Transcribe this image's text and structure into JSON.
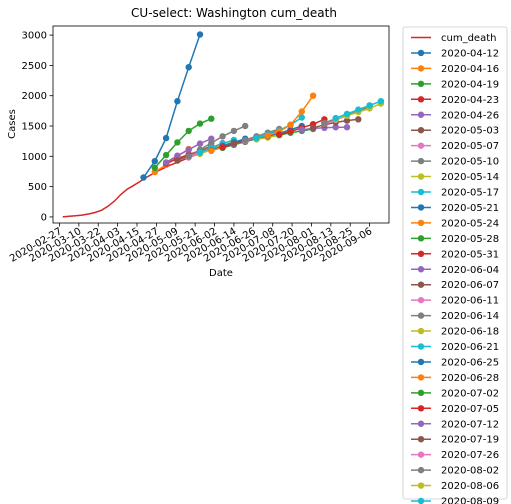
{
  "chart_data": {
    "type": "line",
    "title": "CU-select: Washington cum_death",
    "xlabel": "Date",
    "ylabel": "Cases",
    "x_ticks": [
      "2020-02-27",
      "2020-03-10",
      "2020-03-22",
      "2020-04-03",
      "2020-04-15",
      "2020-04-27",
      "2020-05-09",
      "2020-05-21",
      "2020-06-02",
      "2020-06-14",
      "2020-06-26",
      "2020-07-08",
      "2020-07-20",
      "2020-08-01",
      "2020-08-13",
      "2020-08-25",
      "2020-09-06"
    ],
    "y_ticks": [
      0,
      500,
      1000,
      1500,
      2000,
      2500,
      3000
    ],
    "ylim": [
      -100,
      3150
    ],
    "grid": false,
    "legend_position": "outside-right",
    "actual": {
      "name": "cum_death",
      "color": "#d62728",
      "points": [
        [
          "2020-02-29",
          1
        ],
        [
          "2020-03-04",
          10
        ],
        [
          "2020-03-08",
          18
        ],
        [
          "2020-03-12",
          31
        ],
        [
          "2020-03-16",
          48
        ],
        [
          "2020-03-20",
          74
        ],
        [
          "2020-03-24",
          110
        ],
        [
          "2020-03-28",
          175
        ],
        [
          "2020-04-01",
          262
        ],
        [
          "2020-04-05",
          370
        ],
        [
          "2020-04-09",
          460
        ],
        [
          "2020-04-12",
          505
        ],
        [
          "2020-04-16",
          570
        ],
        [
          "2020-04-20",
          640
        ],
        [
          "2020-04-24",
          700
        ],
        [
          "2020-04-28",
          760
        ],
        [
          "2020-05-02",
          810
        ],
        [
          "2020-05-06",
          860
        ],
        [
          "2020-05-10",
          900
        ],
        [
          "2020-05-14",
          945
        ],
        [
          "2020-05-18",
          990
        ],
        [
          "2020-05-22",
          1030
        ],
        [
          "2020-05-26",
          1070
        ],
        [
          "2020-05-30",
          1110
        ],
        [
          "2020-06-03",
          1145
        ],
        [
          "2020-06-07",
          1175
        ],
        [
          "2020-06-11",
          1200
        ],
        [
          "2020-06-15",
          1230
        ],
        [
          "2020-06-19",
          1255
        ],
        [
          "2020-06-23",
          1275
        ],
        [
          "2020-06-27",
          1295
        ],
        [
          "2020-07-01",
          1310
        ],
        [
          "2020-07-05",
          1325
        ]
      ]
    },
    "forecasts": [
      {
        "name": "2020-04-12",
        "color": "#1f77b4",
        "points": [
          [
            "2020-04-19",
            650
          ],
          [
            "2020-04-26",
            920
          ],
          [
            "2020-05-03",
            1300
          ],
          [
            "2020-05-10",
            1910
          ],
          [
            "2020-05-17",
            2470
          ],
          [
            "2020-05-24",
            3010
          ]
        ]
      },
      {
        "name": "2020-04-16",
        "color": "#ff7f0e",
        "points": [
          [
            "2020-04-26",
            740
          ],
          [
            "2020-05-03",
            860
          ],
          [
            "2020-05-10",
            1000
          ],
          [
            "2020-05-17",
            1120
          ]
        ]
      },
      {
        "name": "2020-04-19",
        "color": "#2ca02c",
        "points": [
          [
            "2020-04-26",
            810
          ],
          [
            "2020-05-03",
            1020
          ],
          [
            "2020-05-10",
            1230
          ],
          [
            "2020-05-17",
            1420
          ],
          [
            "2020-05-24",
            1540
          ],
          [
            "2020-05-31",
            1620
          ]
        ]
      },
      {
        "name": "2020-04-23",
        "color": "#d62728",
        "points": [
          [
            "2020-05-03",
            880
          ],
          [
            "2020-05-10",
            960
          ],
          [
            "2020-05-17",
            1030
          ],
          [
            "2020-05-24",
            1090
          ]
        ]
      },
      {
        "name": "2020-04-26",
        "color": "#9467bd",
        "points": [
          [
            "2020-05-03",
            900
          ],
          [
            "2020-05-10",
            1010
          ],
          [
            "2020-05-17",
            1110
          ],
          [
            "2020-05-24",
            1210
          ],
          [
            "2020-05-31",
            1290
          ]
        ]
      },
      {
        "name": "2020-05-03",
        "color": "#8c564b",
        "points": [
          [
            "2020-05-10",
            930
          ],
          [
            "2020-05-17",
            1010
          ],
          [
            "2020-05-24",
            1090
          ],
          [
            "2020-05-31",
            1170
          ]
        ]
      },
      {
        "name": "2020-05-07",
        "color": "#e377c2",
        "points": [
          [
            "2020-05-17",
            980
          ],
          [
            "2020-05-24",
            1060
          ],
          [
            "2020-05-31",
            1140
          ],
          [
            "2020-06-07",
            1220
          ]
        ]
      },
      {
        "name": "2020-05-10",
        "color": "#7f7f7f",
        "points": [
          [
            "2020-05-17",
            1000
          ],
          [
            "2020-05-24",
            1110
          ],
          [
            "2020-05-31",
            1220
          ],
          [
            "2020-06-07",
            1330
          ],
          [
            "2020-06-14",
            1420
          ],
          [
            "2020-06-21",
            1500
          ]
        ]
      },
      {
        "name": "2020-05-14",
        "color": "#bcbd22",
        "points": [
          [
            "2020-05-24",
            1040
          ],
          [
            "2020-05-31",
            1110
          ],
          [
            "2020-06-07",
            1180
          ],
          [
            "2020-06-14",
            1240
          ]
        ]
      },
      {
        "name": "2020-05-17",
        "color": "#17becf",
        "points": [
          [
            "2020-05-24",
            1060
          ],
          [
            "2020-05-31",
            1140
          ],
          [
            "2020-06-07",
            1210
          ],
          [
            "2020-06-14",
            1270
          ]
        ]
      },
      {
        "name": "2020-05-21",
        "color": "#1f77b4",
        "points": [
          [
            "2020-05-31",
            1100
          ],
          [
            "2020-06-07",
            1170
          ],
          [
            "2020-06-14",
            1230
          ],
          [
            "2020-06-21",
            1290
          ]
        ]
      },
      {
        "name": "2020-05-24",
        "color": "#ff7f0e",
        "points": [
          [
            "2020-05-31",
            1090
          ],
          [
            "2020-06-07",
            1150
          ],
          [
            "2020-06-14",
            1200
          ],
          [
            "2020-06-21",
            1250
          ]
        ]
      },
      {
        "name": "2020-05-28",
        "color": "#2ca02c",
        "points": [
          [
            "2020-06-07",
            1140
          ],
          [
            "2020-06-14",
            1190
          ],
          [
            "2020-06-21",
            1240
          ],
          [
            "2020-06-28",
            1290
          ]
        ]
      },
      {
        "name": "2020-05-31",
        "color": "#d62728",
        "points": [
          [
            "2020-06-07",
            1150
          ],
          [
            "2020-06-14",
            1200
          ],
          [
            "2020-06-21",
            1250
          ],
          [
            "2020-06-28",
            1300
          ]
        ]
      },
      {
        "name": "2020-06-04",
        "color": "#9467bd",
        "points": [
          [
            "2020-06-14",
            1200
          ],
          [
            "2020-06-21",
            1250
          ],
          [
            "2020-06-28",
            1300
          ],
          [
            "2020-07-05",
            1350
          ]
        ]
      },
      {
        "name": "2020-06-07",
        "color": "#8c564b",
        "points": [
          [
            "2020-06-14",
            1210
          ],
          [
            "2020-06-21",
            1260
          ],
          [
            "2020-06-28",
            1310
          ],
          [
            "2020-07-05",
            1360
          ]
        ]
      },
      {
        "name": "2020-06-11",
        "color": "#e377c2",
        "points": [
          [
            "2020-06-21",
            1260
          ],
          [
            "2020-06-28",
            1320
          ],
          [
            "2020-07-05",
            1380
          ],
          [
            "2020-07-12",
            1440
          ]
        ]
      },
      {
        "name": "2020-06-14",
        "color": "#7f7f7f",
        "points": [
          [
            "2020-06-21",
            1270
          ],
          [
            "2020-06-28",
            1330
          ],
          [
            "2020-07-05",
            1390
          ],
          [
            "2020-07-12",
            1450
          ]
        ]
      },
      {
        "name": "2020-06-18",
        "color": "#bcbd22",
        "points": [
          [
            "2020-06-28",
            1280
          ],
          [
            "2020-07-05",
            1310
          ],
          [
            "2020-07-12",
            1350
          ],
          [
            "2020-07-19",
            1390
          ]
        ]
      },
      {
        "name": "2020-06-21",
        "color": "#17becf",
        "points": [
          [
            "2020-06-28",
            1300
          ],
          [
            "2020-07-05",
            1360
          ],
          [
            "2020-07-12",
            1430
          ],
          [
            "2020-07-19",
            1520
          ],
          [
            "2020-07-26",
            1640
          ]
        ]
      },
      {
        "name": "2020-06-25",
        "color": "#1f77b4",
        "points": [
          [
            "2020-07-05",
            1330
          ],
          [
            "2020-07-12",
            1380
          ],
          [
            "2020-07-19",
            1440
          ],
          [
            "2020-07-26",
            1500
          ]
        ]
      },
      {
        "name": "2020-06-28",
        "color": "#ff7f0e",
        "points": [
          [
            "2020-07-05",
            1340
          ],
          [
            "2020-07-12",
            1410
          ],
          [
            "2020-07-19",
            1520
          ],
          [
            "2020-07-26",
            1740
          ],
          [
            "2020-08-02",
            2000
          ]
        ]
      },
      {
        "name": "2020-07-02",
        "color": "#2ca02c",
        "points": [
          [
            "2020-07-12",
            1350
          ],
          [
            "2020-07-19",
            1390
          ],
          [
            "2020-07-26",
            1420
          ],
          [
            "2020-08-02",
            1450
          ]
        ]
      },
      {
        "name": "2020-07-05",
        "color": "#d62728",
        "points": [
          [
            "2020-07-12",
            1360
          ],
          [
            "2020-07-19",
            1410
          ],
          [
            "2020-07-26",
            1470
          ],
          [
            "2020-08-02",
            1530
          ],
          [
            "2020-08-09",
            1610
          ]
        ]
      },
      {
        "name": "2020-07-12",
        "color": "#9467bd",
        "points": [
          [
            "2020-07-26",
            1440
          ],
          [
            "2020-08-02",
            1460
          ],
          [
            "2020-08-09",
            1470
          ],
          [
            "2020-08-16",
            1480
          ],
          [
            "2020-08-23",
            1480
          ]
        ]
      },
      {
        "name": "2020-07-19",
        "color": "#8c564b",
        "points": [
          [
            "2020-08-02",
            1470
          ],
          [
            "2020-08-09",
            1520
          ],
          [
            "2020-08-16",
            1560
          ],
          [
            "2020-08-23",
            1590
          ],
          [
            "2020-08-30",
            1610
          ]
        ]
      },
      {
        "name": "2020-07-26",
        "color": "#e377c2",
        "points": [
          [
            "2020-08-09",
            1540
          ],
          [
            "2020-08-16",
            1600
          ],
          [
            "2020-08-23",
            1670
          ],
          [
            "2020-08-30",
            1750
          ],
          [
            "2020-09-06",
            1840
          ]
        ]
      },
      {
        "name": "2020-08-02",
        "color": "#7f7f7f",
        "points": [
          [
            "2020-08-09",
            1550
          ],
          [
            "2020-08-16",
            1620
          ],
          [
            "2020-08-23",
            1680
          ],
          [
            "2020-08-30",
            1740
          ],
          [
            "2020-09-06",
            1820
          ]
        ]
      },
      {
        "name": "2020-08-06",
        "color": "#bcbd22",
        "points": [
          [
            "2020-08-16",
            1610
          ],
          [
            "2020-08-23",
            1670
          ],
          [
            "2020-08-30",
            1730
          ],
          [
            "2020-09-06",
            1790
          ],
          [
            "2020-09-13",
            1870
          ]
        ]
      },
      {
        "name": "2020-08-09",
        "color": "#17becf",
        "points": [
          [
            "2020-08-16",
            1630
          ],
          [
            "2020-08-23",
            1700
          ],
          [
            "2020-08-30",
            1770
          ],
          [
            "2020-09-06",
            1840
          ],
          [
            "2020-09-13",
            1910
          ]
        ]
      }
    ]
  }
}
